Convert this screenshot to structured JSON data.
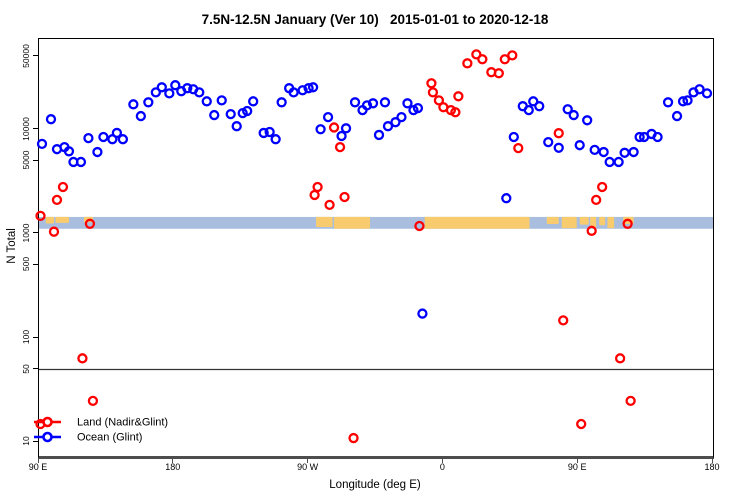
{
  "title": "7.5N-12.5N January (Ver 10)   2015-01-01 to 2020-12-18",
  "chart_data": {
    "type": "scatter",
    "title": "7.5N-12.5N January (Ver 10)   2015-01-01 to 2020-12-18",
    "xlabel": "Longitude (deg E)",
    "ylabel": "N Total",
    "x_axis": {
      "scale": "linear",
      "xlim": [
        90,
        540
      ],
      "ticks": [
        {
          "v": 90,
          "label": "90 E"
        },
        {
          "v": 180,
          "label": "180"
        },
        {
          "v": 270,
          "label": "90 W"
        },
        {
          "v": 360,
          "label": "0"
        },
        {
          "v": 450,
          "label": "90 E"
        },
        {
          "v": 540,
          "label": "180"
        }
      ]
    },
    "y_axis": {
      "scale": "log",
      "ylim": [
        7.4,
        74100
      ],
      "ticks": [
        {
          "v": 10,
          "label": "10"
        },
        {
          "v": 50,
          "label": "50"
        },
        {
          "v": 100,
          "label": "100"
        },
        {
          "v": 500,
          "label": "500"
        },
        {
          "v": 1000,
          "label": "1000"
        },
        {
          "v": 5000,
          "label": "5000"
        },
        {
          "v": 10000,
          "label": "10000"
        },
        {
          "v": 50000,
          "label": "50000"
        }
      ]
    },
    "reference_line": {
      "n": 50,
      "color": "#333333"
    },
    "map_band": {
      "ocean_color": "#a9bede",
      "land_color": "#f8cc6e",
      "n_top": 1455,
      "n_bottom": 1120,
      "land_segments": [
        {
          "from": 94.5,
          "to": 100,
          "h": 0.55
        },
        {
          "from": 101,
          "to": 110,
          "h": 0.5
        },
        {
          "from": 120,
          "to": 126,
          "h": 0.45
        },
        {
          "from": 275,
          "to": 286,
          "h": 0.85
        },
        {
          "from": 287,
          "to": 311,
          "h": 1.0
        },
        {
          "from": 347.5,
          "to": 417.5,
          "h": 1.0
        },
        {
          "from": 429,
          "to": 437,
          "h": 0.6
        },
        {
          "from": 439,
          "to": 449,
          "h": 0.95
        },
        {
          "from": 451,
          "to": 457,
          "h": 0.65
        },
        {
          "from": 458,
          "to": 462,
          "h": 0.9
        },
        {
          "from": 464,
          "to": 468,
          "h": 0.7
        },
        {
          "from": 469.5,
          "to": 474,
          "h": 0.95
        },
        {
          "from": 480,
          "to": 487,
          "h": 0.6
        }
      ]
    },
    "legend": {
      "position": "bottom-left"
    },
    "series": [
      {
        "name": "Land (Nadir&Glint)",
        "color": "#ff0000",
        "points": [
          [
            91,
            1490
          ],
          [
            91,
            15
          ],
          [
            100,
            1050
          ],
          [
            102,
            2120
          ],
          [
            106,
            2820
          ],
          [
            119,
            64
          ],
          [
            124,
            1250
          ],
          [
            126,
            25
          ],
          [
            274,
            2360
          ],
          [
            276,
            2820
          ],
          [
            284,
            1900
          ],
          [
            287,
            10500
          ],
          [
            291,
            6800
          ],
          [
            294,
            2260
          ],
          [
            300,
            11
          ],
          [
            344,
            1190
          ],
          [
            352,
            27900
          ],
          [
            353,
            22800
          ],
          [
            357,
            19100
          ],
          [
            360,
            16400
          ],
          [
            365,
            15400
          ],
          [
            368,
            14700
          ],
          [
            370,
            20900
          ],
          [
            376,
            43300
          ],
          [
            382,
            52800
          ],
          [
            386,
            47400
          ],
          [
            392,
            35600
          ],
          [
            397,
            34800
          ],
          [
            401,
            47400
          ],
          [
            406,
            51600
          ],
          [
            410,
            6650
          ],
          [
            437,
            9250
          ],
          [
            440,
            148
          ],
          [
            452,
            15
          ],
          [
            459,
            1070
          ],
          [
            462,
            2120
          ],
          [
            466,
            2820
          ],
          [
            478,
            64
          ],
          [
            483,
            1250
          ],
          [
            485,
            25
          ]
        ]
      },
      {
        "name": "Ocean (Glint)",
        "color": "#0000ff",
        "points": [
          [
            92,
            7300
          ],
          [
            98,
            12600
          ],
          [
            102,
            6500
          ],
          [
            107,
            6800
          ],
          [
            110,
            6200
          ],
          [
            113,
            4900
          ],
          [
            118,
            4900
          ],
          [
            123,
            8300
          ],
          [
            129,
            6100
          ],
          [
            133,
            8500
          ],
          [
            139,
            8100
          ],
          [
            142,
            9300
          ],
          [
            146,
            8100
          ],
          [
            153,
            17500
          ],
          [
            158,
            13500
          ],
          [
            163,
            18300
          ],
          [
            168,
            22800
          ],
          [
            172,
            25500
          ],
          [
            177,
            22300
          ],
          [
            181,
            26700
          ],
          [
            185,
            23400
          ],
          [
            189,
            25000
          ],
          [
            193,
            24400
          ],
          [
            197,
            22800
          ],
          [
            202,
            18700
          ],
          [
            207,
            13800
          ],
          [
            212,
            19100
          ],
          [
            218,
            14100
          ],
          [
            222,
            10800
          ],
          [
            226,
            14400
          ],
          [
            229,
            15100
          ],
          [
            233,
            18700
          ],
          [
            240,
            9300
          ],
          [
            244,
            9500
          ],
          [
            248,
            8100
          ],
          [
            252,
            18300
          ],
          [
            257,
            25000
          ],
          [
            260,
            22800
          ],
          [
            266,
            23900
          ],
          [
            270,
            25000
          ],
          [
            273,
            25500
          ],
          [
            278,
            10100
          ],
          [
            283,
            13200
          ],
          [
            292,
            8700
          ],
          [
            295,
            10300
          ],
          [
            301,
            18300
          ],
          [
            306,
            15400
          ],
          [
            309,
            17100
          ],
          [
            313,
            17900
          ],
          [
            317,
            8900
          ],
          [
            321,
            18300
          ],
          [
            323,
            10800
          ],
          [
            328,
            11800
          ],
          [
            332,
            13200
          ],
          [
            336,
            17900
          ],
          [
            340,
            15400
          ],
          [
            343,
            16100
          ],
          [
            346,
            172
          ],
          [
            402,
            2200
          ],
          [
            407,
            8500
          ],
          [
            413,
            16800
          ],
          [
            417,
            15400
          ],
          [
            420,
            18700
          ],
          [
            424,
            16800
          ],
          [
            430,
            7600
          ],
          [
            437,
            6700
          ],
          [
            443,
            15700
          ],
          [
            447,
            13800
          ],
          [
            451,
            7100
          ],
          [
            456,
            12300
          ],
          [
            461,
            6400
          ],
          [
            467,
            6100
          ],
          [
            471,
            4900
          ],
          [
            477,
            4900
          ],
          [
            481,
            6000
          ],
          [
            487,
            6100
          ],
          [
            491,
            8500
          ],
          [
            494,
            8500
          ],
          [
            499,
            9100
          ],
          [
            503,
            8500
          ],
          [
            510,
            18300
          ],
          [
            516,
            13500
          ],
          [
            520,
            18700
          ],
          [
            523,
            19100
          ],
          [
            527,
            22800
          ],
          [
            531,
            24400
          ],
          [
            536,
            22300
          ]
        ]
      }
    ]
  }
}
